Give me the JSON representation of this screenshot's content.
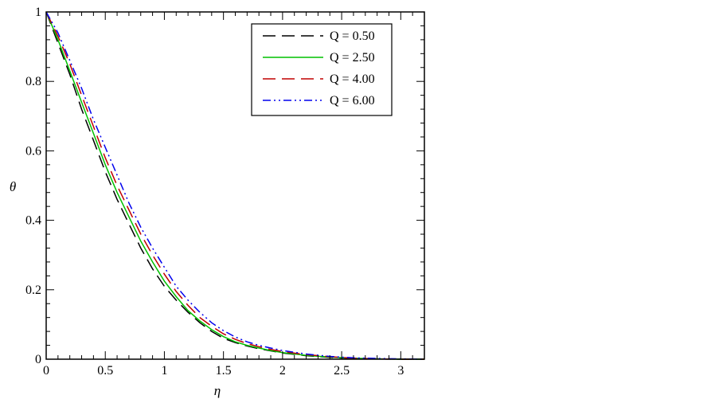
{
  "chart_data": {
    "type": "line",
    "title": "",
    "xlabel": "η",
    "ylabel": "θ",
    "xlim": [
      0,
      3.2
    ],
    "ylim": [
      0,
      1
    ],
    "grid": false,
    "legend_position": "top-right",
    "x_ticks": [
      "0",
      "0.5",
      "1",
      "1.5",
      "2",
      "2.5",
      "3"
    ],
    "y_ticks": [
      "0",
      "0.2",
      "0.4",
      "0.6",
      "0.8",
      "1"
    ],
    "x": [
      0,
      0.1,
      0.2,
      0.3,
      0.4,
      0.5,
      0.6,
      0.7,
      0.8,
      0.9,
      1.0,
      1.1,
      1.2,
      1.3,
      1.4,
      1.5,
      1.6,
      1.7,
      1.8,
      1.9,
      2.0,
      2.2,
      2.4,
      2.6,
      2.8,
      3.0,
      3.2
    ],
    "series": [
      {
        "name": "Q = 0.50",
        "color": "#000000",
        "dash": "long-dash",
        "values": [
          1.0,
          0.91,
          0.82,
          0.72,
          0.63,
          0.54,
          0.46,
          0.39,
          0.32,
          0.26,
          0.21,
          0.17,
          0.135,
          0.105,
          0.08,
          0.06,
          0.048,
          0.038,
          0.03,
          0.024,
          0.018,
          0.01,
          0.005,
          0.002,
          0.001,
          0.0,
          0.0
        ]
      },
      {
        "name": "Q = 2.50",
        "color": "#00c000",
        "dash": "solid",
        "values": [
          1.0,
          0.92,
          0.83,
          0.74,
          0.65,
          0.56,
          0.48,
          0.41,
          0.34,
          0.28,
          0.225,
          0.18,
          0.14,
          0.11,
          0.085,
          0.065,
          0.05,
          0.04,
          0.032,
          0.025,
          0.019,
          0.011,
          0.006,
          0.003,
          0.001,
          0.0,
          0.0
        ]
      },
      {
        "name": "Q = 4.00",
        "color": "#c00000",
        "dash": "long-dash",
        "values": [
          1.0,
          0.93,
          0.85,
          0.76,
          0.67,
          0.58,
          0.5,
          0.43,
          0.36,
          0.3,
          0.245,
          0.195,
          0.155,
          0.12,
          0.095,
          0.073,
          0.057,
          0.045,
          0.036,
          0.028,
          0.022,
          0.013,
          0.007,
          0.003,
          0.001,
          0.0,
          0.0
        ]
      },
      {
        "name": "Q = 6.00",
        "color": "#0000ee",
        "dash": "dash-dot-dot",
        "values": [
          1.0,
          0.94,
          0.86,
          0.78,
          0.69,
          0.61,
          0.53,
          0.45,
          0.38,
          0.32,
          0.265,
          0.21,
          0.17,
          0.135,
          0.105,
          0.082,
          0.064,
          0.05,
          0.04,
          0.032,
          0.025,
          0.015,
          0.008,
          0.004,
          0.002,
          0.001,
          0.0
        ]
      }
    ]
  }
}
